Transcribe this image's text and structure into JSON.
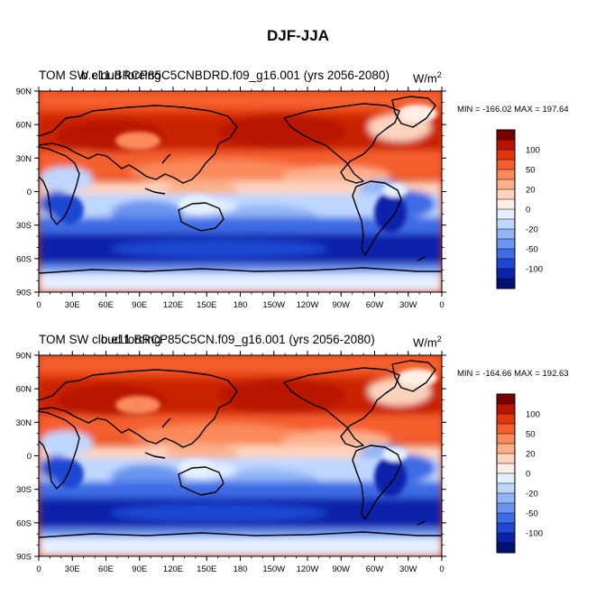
{
  "title": "DJF-JJA",
  "panels": [
    {
      "left_title": "TOM SW cloud forcing",
      "center_title": "b.e11.BRCP85C5CNBDRD.f09_g16.001 (yrs 2056-2080)",
      "units_base": "W/m",
      "units_exp": "2",
      "minmax": "MIN = -166.02 MAX = 197.64"
    },
    {
      "left_title": "TOM SW cloud forcing",
      "center_title": "b.e11.BRCP85C5CN.f09_g16.001 (yrs 2056-2080)",
      "units_base": "W/m",
      "units_exp": "2",
      "minmax": "MIN = -164.66 MAX = 192.63"
    }
  ],
  "lat_labels": [
    "90N",
    "60N",
    "30N",
    "0",
    "30S",
    "60S",
    "90S"
  ],
  "lon_labels": [
    "0",
    "30E",
    "60E",
    "90E",
    "120E",
    "150E",
    "180",
    "150W",
    "120W",
    "90W",
    "60W",
    "30W",
    "0"
  ],
  "colorbar": {
    "labels": [
      "100",
      "50",
      "20",
      "0",
      "-20",
      "-50",
      "-100"
    ],
    "colors": [
      "#7a0000",
      "#b81400",
      "#e0380c",
      "#f45f2e",
      "#fa8a5c",
      "#fcb08a",
      "#fdd3bd",
      "#ffeee4",
      "#e4efff",
      "#bfd7ff",
      "#92b6f5",
      "#6a94ef",
      "#3e6ce6",
      "#1e47d3",
      "#0c22ab",
      "#001274"
    ]
  }
}
